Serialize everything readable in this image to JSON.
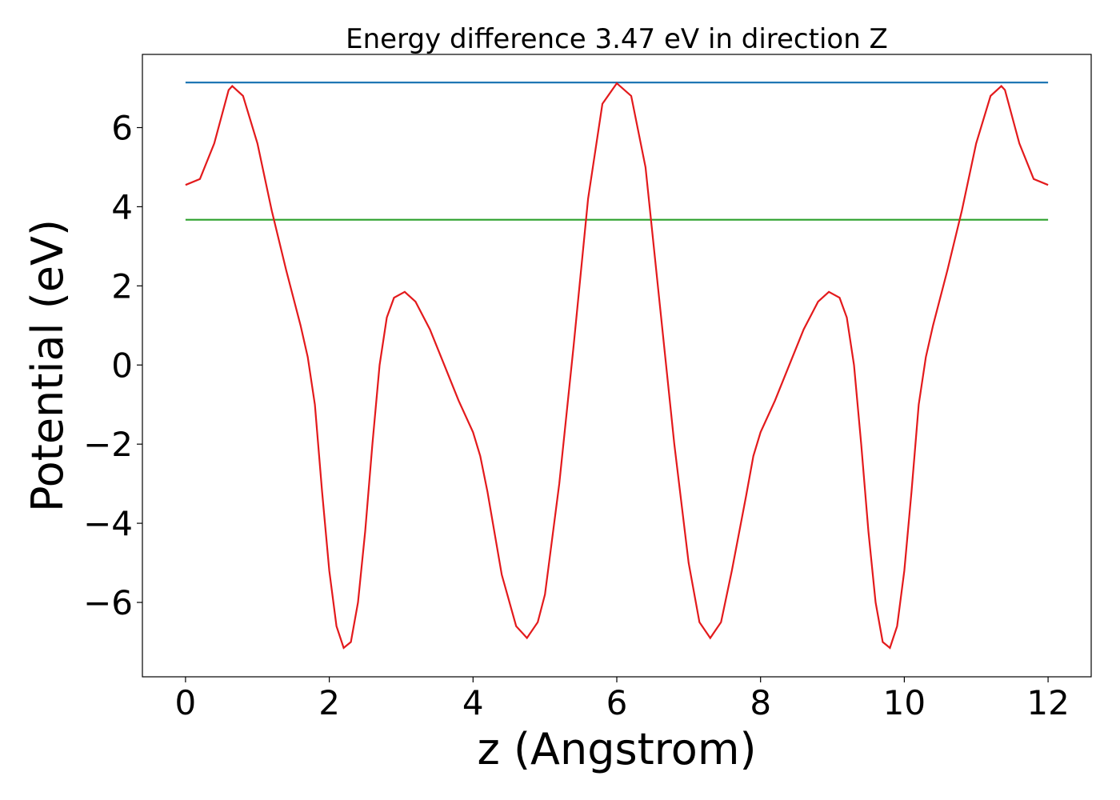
{
  "chart_data": {
    "type": "line",
    "title": "Energy difference 3.47 eV in direction Z",
    "xlabel": "z (Angstrom)",
    "ylabel": "Potential (eV)",
    "xlim": [
      -0.6,
      12.6
    ],
    "ylim": [
      -7.88,
      7.85
    ],
    "xticks": [
      0,
      2,
      4,
      6,
      8,
      10,
      12
    ],
    "yticks": [
      {
        "value": -6,
        "label": "−6"
      },
      {
        "value": -4,
        "label": "−4"
      },
      {
        "value": -2,
        "label": "−2"
      },
      0,
      2,
      4,
      6
    ],
    "series": [
      {
        "color": "#1f77b4",
        "x": [
          0,
          12
        ],
        "values": [
          7.14,
          7.14
        ]
      },
      {
        "color": "#2ca02c",
        "x": [
          0,
          12
        ],
        "values": [
          3.67,
          3.67
        ]
      },
      {
        "color": "#e31a1c",
        "x": [
          0,
          0.2,
          0.4,
          0.6,
          0.65,
          0.8,
          1.0,
          1.2,
          1.4,
          1.6,
          1.7,
          1.8,
          1.9,
          2.0,
          2.1,
          2.2,
          2.3,
          2.4,
          2.5,
          2.6,
          2.7,
          2.8,
          2.9,
          3.05,
          3.2,
          3.4,
          3.6,
          3.8,
          4.0,
          4.1,
          4.2,
          4.4,
          4.6,
          4.75,
          4.9,
          5.0,
          5.2,
          5.4,
          5.6,
          5.8,
          6.0,
          6.2,
          6.4,
          6.6,
          6.8,
          7.0,
          7.15,
          7.3,
          7.45,
          7.6,
          7.8,
          7.9,
          8.0,
          8.2,
          8.4,
          8.6,
          8.8,
          8.95,
          9.1,
          9.2,
          9.3,
          9.4,
          9.5,
          9.6,
          9.7,
          9.8,
          9.9,
          10.0,
          10.1,
          10.2,
          10.3,
          10.4,
          10.6,
          10.8,
          11.0,
          11.2,
          11.35,
          11.4,
          11.6,
          11.8,
          12.0
        ],
        "values": [
          4.55,
          4.7,
          5.6,
          6.95,
          7.05,
          6.8,
          5.6,
          3.9,
          2.4,
          1.0,
          0.2,
          -1.0,
          -3.2,
          -5.2,
          -6.6,
          -7.15,
          -7.0,
          -6.0,
          -4.2,
          -2.0,
          0.0,
          1.2,
          1.7,
          1.85,
          1.6,
          0.9,
          0.0,
          -0.9,
          -1.7,
          -2.3,
          -3.2,
          -5.3,
          -6.6,
          -6.9,
          -6.5,
          -5.8,
          -3.0,
          0.5,
          4.2,
          6.6,
          7.12,
          6.8,
          5.0,
          1.5,
          -2.0,
          -5.0,
          -6.5,
          -6.9,
          -6.5,
          -5.2,
          -3.3,
          -2.3,
          -1.7,
          -0.9,
          0.0,
          0.9,
          1.6,
          1.85,
          1.7,
          1.2,
          0.0,
          -2.0,
          -4.2,
          -6.0,
          -7.0,
          -7.15,
          -6.6,
          -5.2,
          -3.2,
          -1.0,
          0.2,
          1.0,
          2.4,
          3.9,
          5.6,
          6.8,
          7.05,
          6.95,
          5.6,
          4.7,
          4.55
        ]
      }
    ]
  }
}
